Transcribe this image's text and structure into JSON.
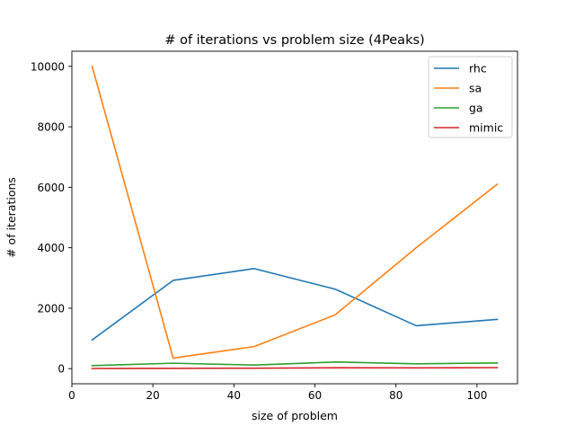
{
  "chart_data": {
    "type": "line",
    "title": "# of iterations vs problem size (4Peaks)",
    "xlabel": "size of problem",
    "ylabel": "# of iterations",
    "x": [
      5,
      25,
      45,
      65,
      85,
      105
    ],
    "xlim": [
      0,
      110
    ],
    "ylim": [
      -500,
      10500
    ],
    "xticks": [
      "0",
      "20",
      "40",
      "60",
      "80",
      "100"
    ],
    "yticks": [
      "0",
      "2000",
      "4000",
      "6000",
      "8000",
      "10000"
    ],
    "grid": false,
    "legend_position": "top-right",
    "series": [
      {
        "name": "rhc",
        "color": "#1f77b4",
        "values": [
          950,
          2920,
          3310,
          2630,
          1420,
          1630
        ]
      },
      {
        "name": "sa",
        "color": "#ff7f0e",
        "values": [
          10000,
          350,
          730,
          1780,
          4000,
          6100
        ]
      },
      {
        "name": "ga",
        "color": "#2ca02c",
        "values": [
          100,
          180,
          120,
          220,
          160,
          190
        ]
      },
      {
        "name": "mimic",
        "color": "#d62728",
        "values": [
          5,
          10,
          15,
          30,
          25,
          35
        ]
      }
    ]
  }
}
